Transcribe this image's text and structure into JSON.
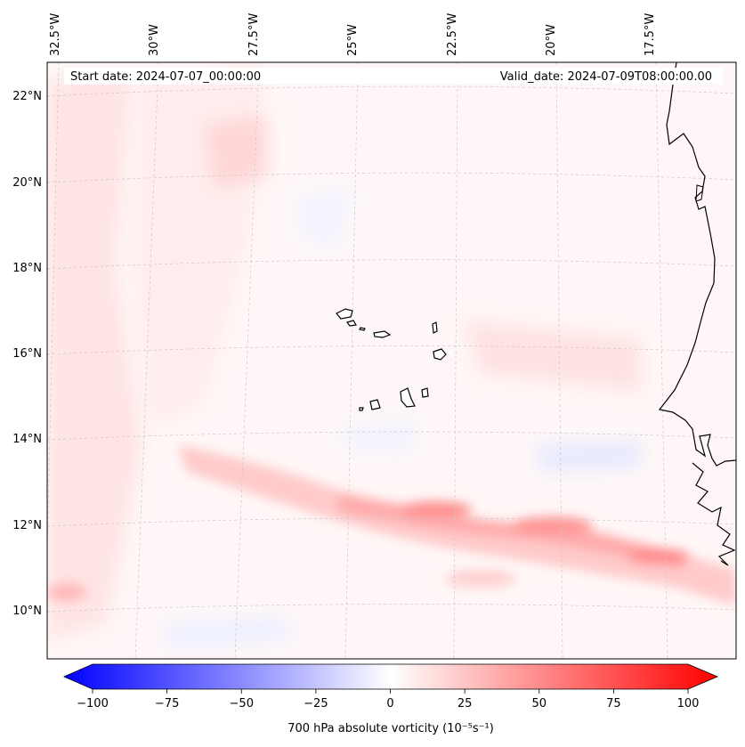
{
  "header": {
    "start_date": "Start date: 2024-07-07_00:00:00",
    "valid_date": "Valid_date: 2024-07-09T08:00:00.00"
  },
  "map": {
    "lon_labels": [
      "32.5°W",
      "30°W",
      "27.5°W",
      "25°W",
      "22.5°W",
      "20°W",
      "17.5°W"
    ],
    "lat_labels": [
      "22°N",
      "20°N",
      "18°N",
      "16°N",
      "14°N",
      "12°N",
      "10°N"
    ],
    "field": "700 hPa absolute vorticity",
    "features": [
      "Cape Verde islands",
      "West African coastline",
      "vorticity band along 12°N"
    ]
  },
  "colorbar": {
    "label": "700 hPa absolute vorticity (10⁻⁵s⁻¹)",
    "ticks": [
      "−100",
      "−75",
      "−50",
      "−25",
      "0",
      "25",
      "50",
      "75",
      "100"
    ],
    "tick_values": [
      -100,
      -75,
      -50,
      -25,
      0,
      25,
      50,
      75,
      100
    ],
    "range": [
      -100,
      100
    ],
    "low_color": "#0000ff",
    "mid_color": "#ffffff",
    "high_color": "#ff0000"
  }
}
